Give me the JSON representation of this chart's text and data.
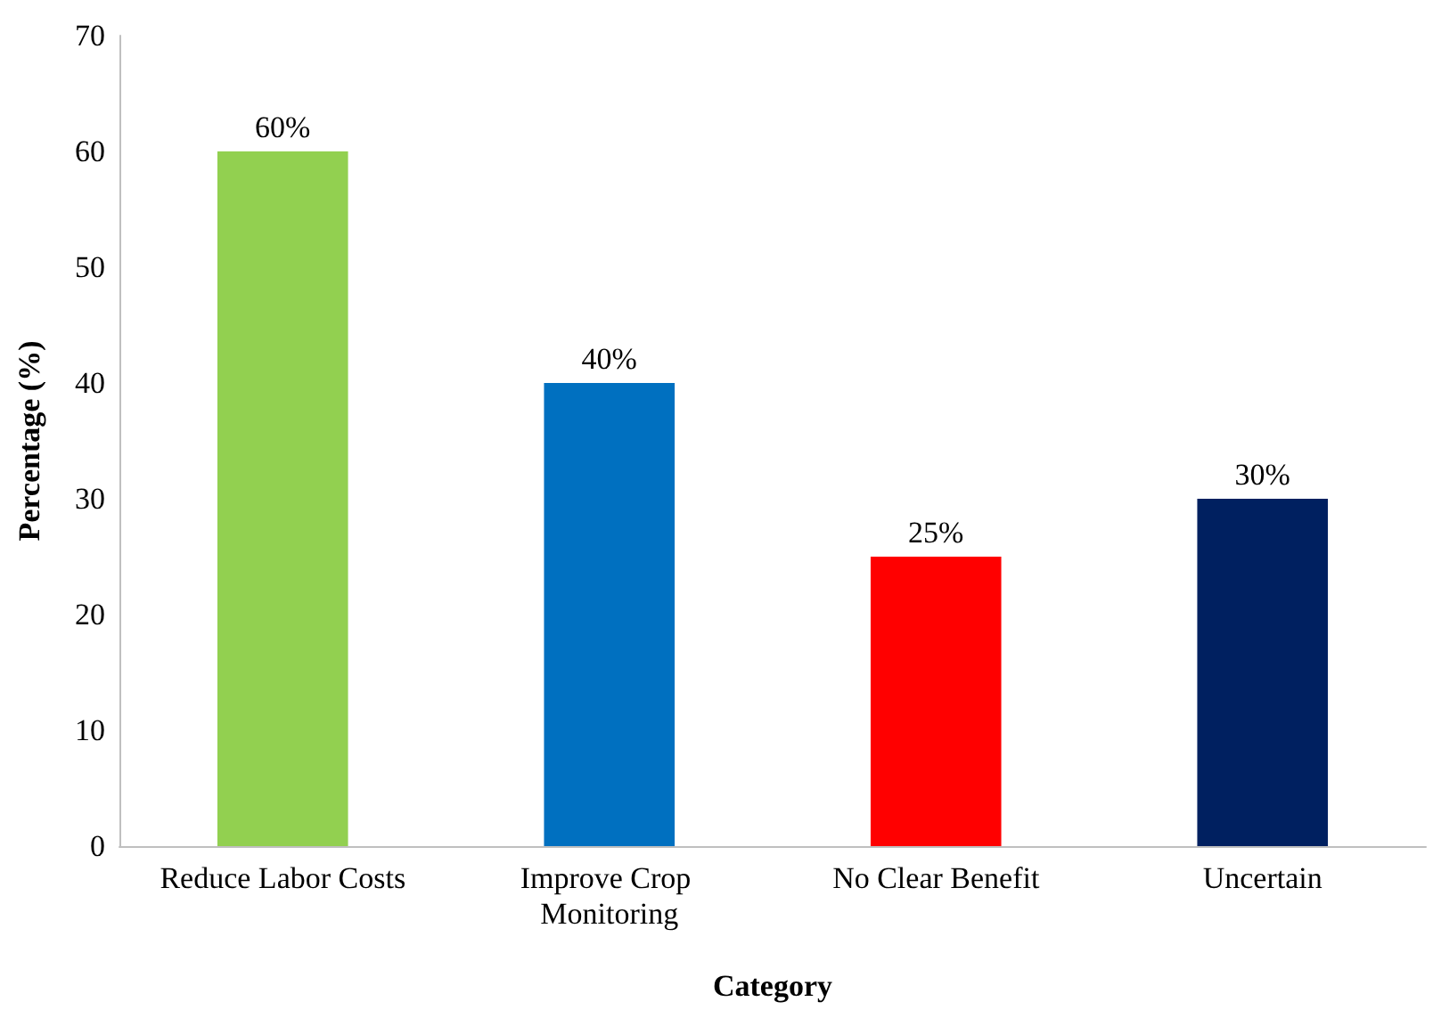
{
  "chart_data": {
    "type": "bar",
    "xlabel": "Category",
    "ylabel": "Percentage (%)",
    "categories": [
      "Reduce Labor Costs",
      "Improve Crop Monitoring",
      "No Clear Benefit",
      "Uncertain"
    ],
    "values": [
      60,
      40,
      25,
      30
    ],
    "colors": [
      "#92d050",
      "#0070c0",
      "#ff0000",
      "#002060"
    ],
    "value_labels": [
      "60%",
      "40%",
      "25%",
      "30%"
    ],
    "ylim": [
      0,
      70
    ],
    "yticks": [
      0,
      10,
      20,
      30,
      40,
      50,
      60,
      70
    ],
    "grid": false
  }
}
